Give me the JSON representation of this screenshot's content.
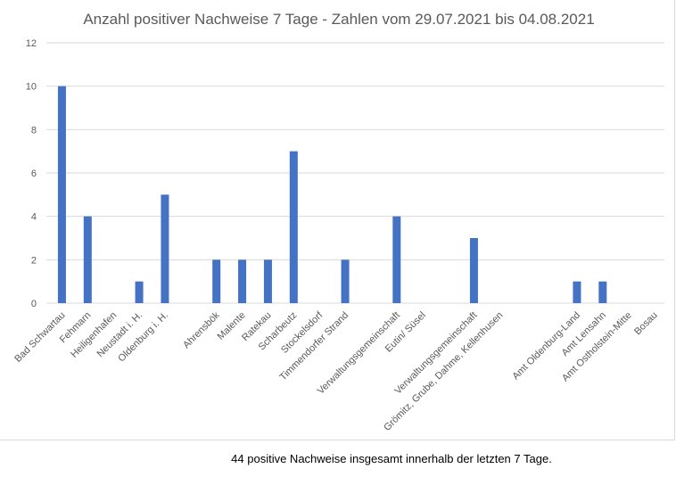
{
  "chart_data": {
    "type": "bar",
    "title": "Anzahl positiver Nachweise 7 Tage - Zahlen vom 29.07.2021  bis 04.08.2021",
    "categories": [
      "Bad Schwartau",
      "Fehmarn",
      "Heiligenhafen",
      "Neustadt i. H.",
      "Oldenburg i. H.",
      "",
      "Ahrensbök",
      "Malente",
      "Ratekau",
      "Scharbeutz",
      "Stockelsdorf",
      "Timmendorfer Strand",
      "",
      "Verwaltungsgemeinschaft",
      "Eutin/ Süsel",
      "",
      "Verwaltungsgemeinschaft",
      "Grömitz, Grube, Dahme, Kellenhusen",
      "",
      "",
      "Amt Oldenburg-Land",
      "Amt Lensahn",
      "Amt Ostholstein-Mitte",
      "Bosau"
    ],
    "values": [
      10,
      4,
      0,
      1,
      5,
      0,
      2,
      2,
      2,
      7,
      0,
      2,
      0,
      4,
      0,
      0,
      3,
      0,
      0,
      0,
      1,
      1,
      0,
      0
    ],
    "ylim": [
      0,
      12
    ],
    "yticks": [
      0,
      2,
      4,
      6,
      8,
      10,
      12
    ],
    "grid": true,
    "bar_color": "#4472c4"
  },
  "footer": {
    "note": "44  positive Nachweise insgesamt innerhalb der letzten 7 Tage."
  }
}
